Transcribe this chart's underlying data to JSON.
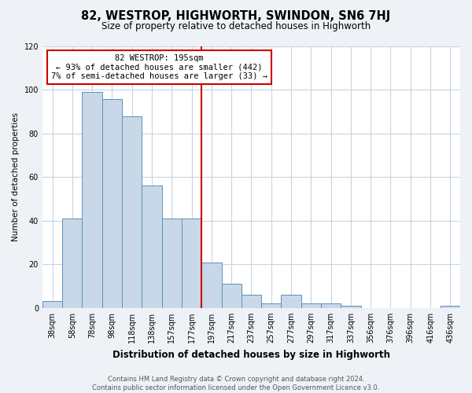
{
  "title": "82, WESTROP, HIGHWORTH, SWINDON, SN6 7HJ",
  "subtitle": "Size of property relative to detached houses in Highworth",
  "xlabel": "Distribution of detached houses by size in Highworth",
  "ylabel": "Number of detached properties",
  "bar_labels": [
    "38sqm",
    "58sqm",
    "78sqm",
    "98sqm",
    "118sqm",
    "138sqm",
    "157sqm",
    "177sqm",
    "197sqm",
    "217sqm",
    "237sqm",
    "257sqm",
    "277sqm",
    "297sqm",
    "317sqm",
    "337sqm",
    "356sqm",
    "376sqm",
    "396sqm",
    "416sqm",
    "436sqm"
  ],
  "bar_values": [
    3,
    41,
    99,
    96,
    88,
    56,
    41,
    41,
    21,
    11,
    6,
    2,
    6,
    2,
    2,
    1,
    0,
    0,
    0,
    0,
    1
  ],
  "bar_color": "#c8d8e8",
  "bar_edge_color": "#6090b8",
  "marker_label": "82 WESTROP: 195sqm",
  "annotation_line1": "← 93% of detached houses are smaller (442)",
  "annotation_line2": "7% of semi-detached houses are larger (33) →",
  "vline_color": "#cc0000",
  "annotation_box_edge": "#cc0000",
  "vline_x_index": 8,
  "ylim": [
    0,
    120
  ],
  "yticks": [
    0,
    20,
    40,
    60,
    80,
    100,
    120
  ],
  "footer_line1": "Contains HM Land Registry data © Crown copyright and database right 2024.",
  "footer_line2": "Contains public sector information licensed under the Open Government Licence v3.0.",
  "background_color": "#eef2f7",
  "plot_background": "#ffffff",
  "title_fontsize": 10.5,
  "subtitle_fontsize": 8.5,
  "xlabel_fontsize": 8.5,
  "ylabel_fontsize": 7.5,
  "tick_fontsize": 7,
  "footer_fontsize": 6,
  "annot_fontsize": 7.5
}
